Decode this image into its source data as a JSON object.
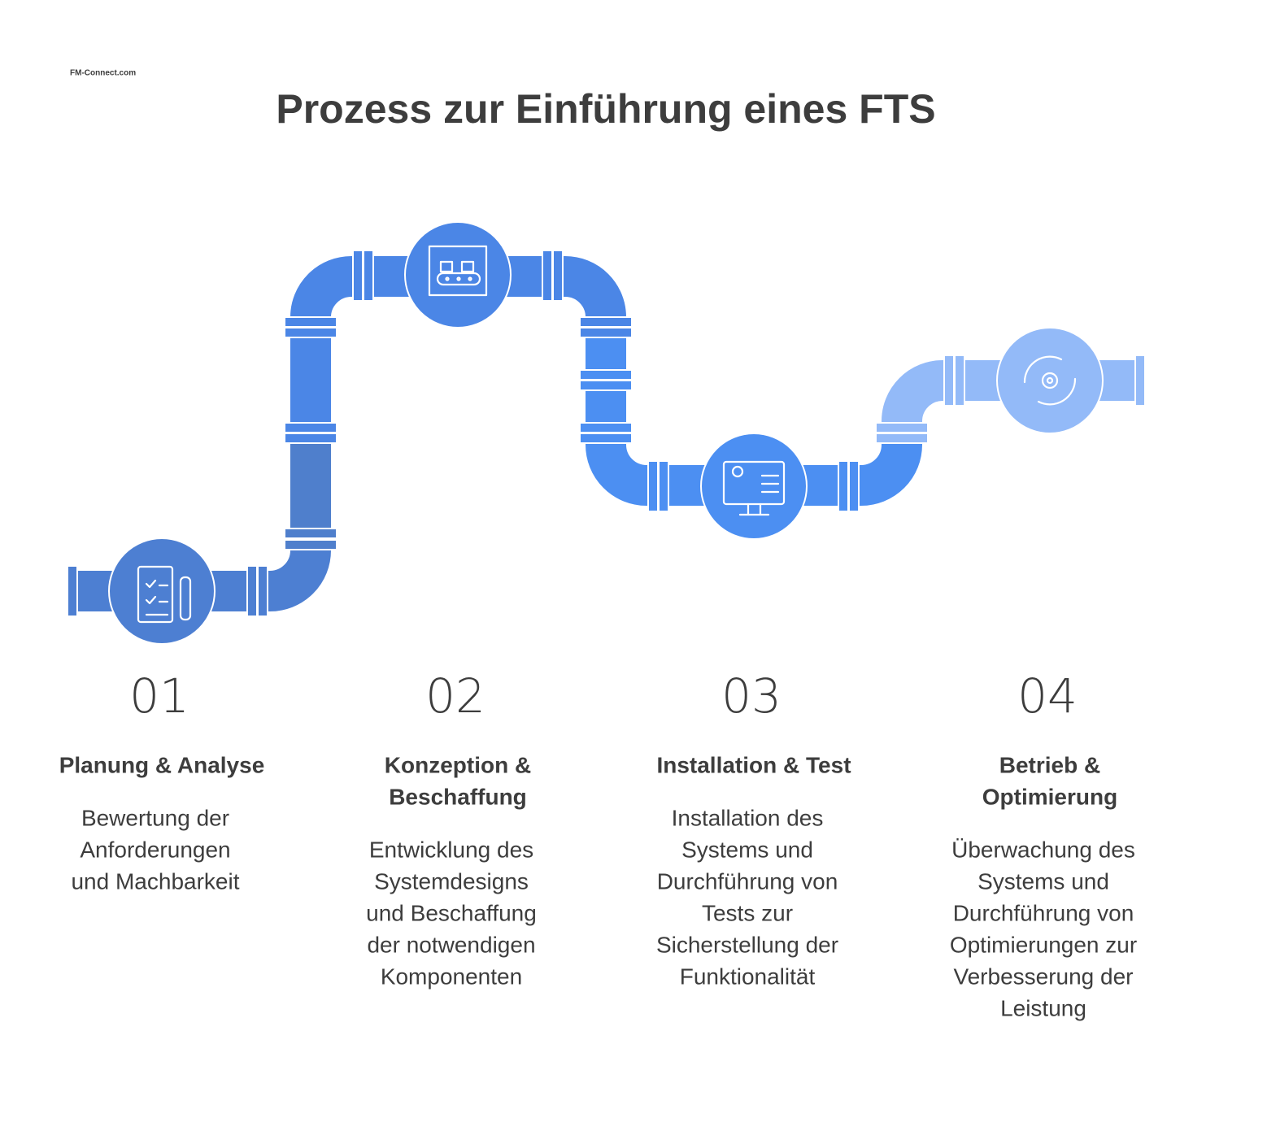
{
  "header": {
    "logo": "FM-Connect.com",
    "title": "Prozess zur Einführung eines FTS"
  },
  "steps": [
    {
      "number": "01",
      "title": [
        "Planung & Analyse"
      ],
      "description": [
        "Bewertung der",
        "Anforderungen",
        "und Machbarkeit"
      ]
    },
    {
      "number": "02",
      "title": [
        "Konzeption &",
        "Beschaffung"
      ],
      "description": [
        "Entwicklung des",
        "Systemdesigns",
        "und Beschaffung",
        "der notwendigen",
        "Komponenten"
      ]
    },
    {
      "number": "03",
      "title": [
        "Installation & Test"
      ],
      "description": [
        "Installation des",
        "Systems und",
        "Durchführung von",
        "Tests zur",
        "Sicherstellung der",
        "Funktionalität"
      ]
    },
    {
      "number": "04",
      "title": [
        "Betrieb &",
        "Optimierung"
      ],
      "description": [
        "Überwachung des",
        "Systems und",
        "Durchführung von",
        "Optimierungen zur",
        "Verbesserung der",
        "Leistung"
      ]
    }
  ]
}
